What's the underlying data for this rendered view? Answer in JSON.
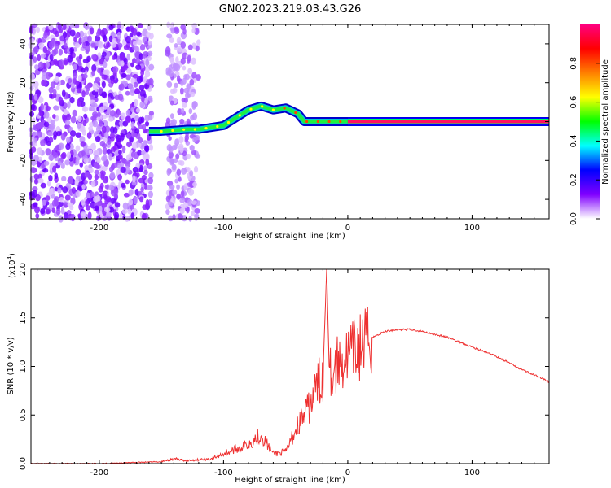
{
  "title": "GN02.2023.219.03.43.G26",
  "chart_data": [
    {
      "type": "heatmap",
      "xlabel": "Height of straight line (km)",
      "ylabel": "Frequency (Hz)",
      "xlim": [
        -255,
        162
      ],
      "ylim": [
        -50,
        50
      ],
      "xticks": [
        -200,
        -100,
        0,
        100
      ],
      "yticks": [
        -40,
        -20,
        0,
        20,
        40
      ],
      "colorbar": {
        "label": "Normalized spectral amplitude",
        "range": [
          0.0,
          1.0
        ],
        "ticks": [
          0.0,
          0.2,
          0.4,
          0.6,
          0.8
        ],
        "colormap": [
          "#ffffff",
          "#8000ff",
          "#0000ff",
          "#00ffff",
          "#00ff00",
          "#ffff00",
          "#ff8000",
          "#ff0000",
          "#ff0080"
        ]
      },
      "ridge": {
        "x": [
          -160,
          -150,
          -140,
          -130,
          -120,
          -110,
          -100,
          -90,
          -80,
          -70,
          -60,
          -50,
          -40,
          -35,
          -30,
          -20,
          -10,
          0,
          50,
          100,
          162
        ],
        "y": [
          -5,
          -5,
          -4.5,
          -4,
          -4,
          -3,
          -2,
          2,
          6,
          8,
          6,
          7,
          4,
          0,
          0,
          0,
          0,
          0,
          0,
          0,
          0
        ]
      }
    },
    {
      "type": "line",
      "xlabel": "Height of straight line (km)",
      "ylabel": "SNR (10 * v/v)",
      "yscale_label": "(x10",
      "yscale_exp": "4",
      "xlim": [
        -255,
        162
      ],
      "ylim": [
        0.0,
        2.0
      ],
      "xticks": [
        -200,
        -100,
        0,
        100
      ],
      "yticks": [
        "0.0",
        "0.5",
        "1.0",
        "1.5",
        "2.0"
      ],
      "series": [
        {
          "color": "#ee3030",
          "x": [
            -255,
            -200,
            -150,
            -140,
            -130,
            -110,
            -100,
            -90,
            -80,
            -70,
            -60,
            -50,
            -40,
            -30,
            -25,
            -20,
            -17,
            -15,
            -12,
            -10,
            0,
            10,
            20,
            30,
            40,
            50,
            60,
            80,
            100,
            120,
            140,
            162
          ],
          "y": [
            0.0,
            0.0,
            0.02,
            0.05,
            0.03,
            0.05,
            0.1,
            0.15,
            0.2,
            0.3,
            0.1,
            0.12,
            0.4,
            0.6,
            0.8,
            0.9,
            2.0,
            1.0,
            0.9,
            1.0,
            1.1,
            1.2,
            1.3,
            1.36,
            1.38,
            1.38,
            1.36,
            1.3,
            1.2,
            1.1,
            0.97,
            0.84
          ]
        }
      ]
    }
  ]
}
